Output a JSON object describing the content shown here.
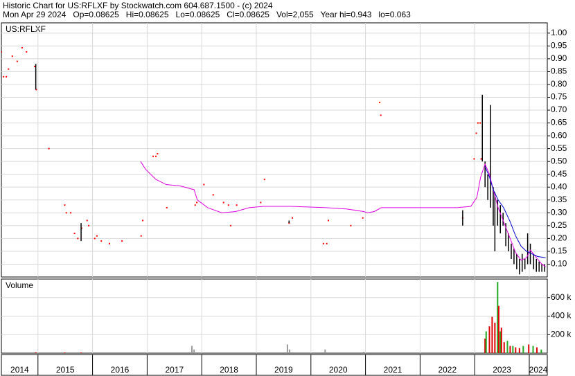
{
  "header": {
    "line1": "Historic Chart for US:RFLXF by Stockwatch.com 604.687.1500 - (c) 2024",
    "line2": "Mon Apr 29 2024   Op=0.08625   Hi=0.08625   Lo=0.08625   Cl=0.08625   Vol=2,055   Year hi=0.943   lo=0.063"
  },
  "chart_data": [
    {
      "type": "stock",
      "title": "US:RFLXF",
      "xlim": [
        2014.33,
        2024.33
      ],
      "ylim": [
        0.05,
        1.04
      ],
      "grid": true,
      "yticks": [
        {
          "value": 0.1,
          "label": "0.10"
        },
        {
          "value": 0.15,
          "label": "0.15"
        },
        {
          "value": 0.2,
          "label": "0.20"
        },
        {
          "value": 0.25,
          "label": "0.25"
        },
        {
          "value": 0.3,
          "label": "0.30"
        },
        {
          "value": 0.35,
          "label": "0.35"
        },
        {
          "value": 0.4,
          "label": "0.40"
        },
        {
          "value": 0.45,
          "label": "0.45"
        },
        {
          "value": 0.5,
          "label": "0.50"
        },
        {
          "value": 0.55,
          "label": "0.55"
        },
        {
          "value": 0.6,
          "label": "0.60"
        },
        {
          "value": 0.65,
          "label": "0.65"
        },
        {
          "value": 0.7,
          "label": "0.70"
        },
        {
          "value": 0.75,
          "label": "0.75"
        },
        {
          "value": 0.8,
          "label": "0.80"
        },
        {
          "value": 0.85,
          "label": "0.85"
        },
        {
          "value": 0.9,
          "label": "0.90"
        },
        {
          "value": 0.95,
          "label": "0.95"
        },
        {
          "value": 1.0,
          "label": "1.00"
        }
      ],
      "series": [
        {
          "type": "scatter",
          "color": "#ff0000",
          "x": [
            2014.33,
            2014.37,
            2014.42,
            2014.46,
            2014.53,
            2014.62,
            2014.71,
            2014.79,
            2014.94,
            2014.97,
            2015.2,
            2015.49,
            2015.52,
            2015.6,
            2015.67,
            2015.73,
            2015.8,
            2015.9,
            2015.93,
            2016.04,
            2016.08,
            2016.16,
            2016.31,
            2016.54,
            2016.89,
            2016.92,
            2017.11,
            2017.16,
            2017.19,
            2017.36,
            2017.88,
            2017.91,
            2018.04,
            2018.21,
            2018.4,
            2018.49,
            2018.53,
            2018.64,
            2019.08,
            2019.15,
            2019.6,
            2019.66,
            2020.23,
            2020.29,
            2020.32,
            2020.73,
            2020.95,
            2021.26,
            2021.28,
            2022.78,
            2022.99,
            2023.03,
            2023.06,
            2023.1,
            2023.12
          ],
          "values": [
            0.927,
            0.83,
            0.83,
            0.86,
            0.91,
            0.89,
            0.943,
            0.927,
            0.87,
            0.78,
            0.55,
            0.33,
            0.3,
            0.3,
            0.22,
            0.2,
            0.24,
            0.27,
            0.25,
            0.2,
            0.21,
            0.19,
            0.18,
            0.19,
            0.21,
            0.27,
            0.52,
            0.52,
            0.53,
            0.32,
            0.33,
            0.34,
            0.41,
            0.37,
            0.34,
            0.33,
            0.25,
            0.33,
            0.34,
            0.43,
            0.26,
            0.28,
            0.18,
            0.18,
            0.27,
            0.25,
            0.28,
            0.73,
            0.68,
            0.28,
            0.51,
            0.61,
            0.65,
            0.65,
            0.51
          ]
        },
        {
          "type": "range",
          "color": "#000000",
          "x": [
            2014.96,
            2015.79,
            2019.6,
            2022.78,
            2023.14,
            2023.19,
            2023.24,
            2023.29,
            2023.34,
            2023.37,
            2023.42,
            2023.47,
            2023.52,
            2023.57,
            2023.62,
            2023.67,
            2023.72,
            2023.77,
            2023.82,
            2023.87,
            2023.92,
            2023.97,
            2024.02,
            2024.08,
            2024.13,
            2024.18,
            2024.23,
            2024.28
          ],
          "low": [
            0.78,
            0.19,
            0.26,
            0.25,
            0.5,
            0.4,
            0.35,
            0.32,
            0.25,
            0.15,
            0.25,
            0.22,
            0.25,
            0.17,
            0.15,
            0.12,
            0.1,
            0.08,
            0.06,
            0.07,
            0.08,
            0.1,
            0.1,
            0.08,
            0.07,
            0.07,
            0.07,
            0.07
          ],
          "high": [
            0.88,
            0.26,
            0.27,
            0.31,
            0.76,
            0.5,
            0.45,
            0.72,
            0.4,
            0.38,
            0.35,
            0.33,
            0.3,
            0.26,
            0.22,
            0.18,
            0.16,
            0.14,
            0.12,
            0.14,
            0.12,
            0.22,
            0.18,
            0.14,
            0.12,
            0.11,
            0.1,
            0.1
          ]
        },
        {
          "type": "line",
          "color": "#e000e0",
          "x": [
            2016.88,
            2016.97,
            2017.16,
            2017.35,
            2017.6,
            2017.86,
            2017.92,
            2018.11,
            2018.37,
            2018.62,
            2018.87,
            2019.13,
            2019.64,
            2020.27,
            2020.65,
            2020.97,
            2021.03,
            2021.16,
            2021.29,
            2021.92,
            2022.68,
            2022.93,
            2023.04,
            2023.11,
            2023.19,
            2023.27,
            2023.34,
            2023.43,
            2023.53,
            2023.65,
            2023.75,
            2023.85,
            2023.95,
            2024.02,
            2024.13,
            2024.23,
            2024.3
          ],
          "values": [
            0.5,
            0.47,
            0.43,
            0.41,
            0.405,
            0.39,
            0.35,
            0.32,
            0.3,
            0.305,
            0.32,
            0.325,
            0.325,
            0.32,
            0.315,
            0.305,
            0.3,
            0.305,
            0.32,
            0.32,
            0.32,
            0.325,
            0.36,
            0.44,
            0.49,
            0.45,
            0.39,
            0.32,
            0.265,
            0.2,
            0.145,
            0.115,
            0.125,
            0.155,
            0.125,
            0.1,
            0.09
          ]
        },
        {
          "type": "line",
          "color": "#0000cc",
          "x": [
            2023.19,
            2023.27,
            2023.34,
            2023.43,
            2023.53,
            2023.65,
            2023.75,
            2023.85,
            2023.95,
            2024.05,
            2024.15,
            2024.3
          ],
          "values": [
            0.48,
            0.44,
            0.39,
            0.35,
            0.32,
            0.265,
            0.21,
            0.17,
            0.15,
            0.14,
            0.13,
            0.125
          ]
        }
      ]
    },
    {
      "type": "bar",
      "title": "Volume",
      "xlim": [
        2014.33,
        2024.33
      ],
      "ylim": [
        0,
        800000
      ],
      "grid": true,
      "yticks": [
        {
          "value": 200000,
          "label": "200 k"
        },
        {
          "value": 400000,
          "label": "400 k"
        },
        {
          "value": 600000,
          "label": "600 k"
        }
      ],
      "xticks": [
        {
          "value": 2014,
          "label": "2014"
        },
        {
          "value": 2015,
          "label": "2015"
        },
        {
          "value": 2016,
          "label": "2016"
        },
        {
          "value": 2017,
          "label": "2017"
        },
        {
          "value": 2018,
          "label": "2018"
        },
        {
          "value": 2019,
          "label": "2019"
        },
        {
          "value": 2020,
          "label": "2020"
        },
        {
          "value": 2021,
          "label": "2021"
        },
        {
          "value": 2022,
          "label": "2022"
        },
        {
          "value": 2023,
          "label": "2023"
        },
        {
          "value": 2024,
          "label": "2024"
        }
      ],
      "x": [
        2014.96,
        2015.49,
        2015.79,
        2017.82,
        2017.86,
        2019.57,
        2019.61,
        2020.26,
        2020.97,
        2023.19,
        2023.21,
        2023.27,
        2023.32,
        2023.37,
        2023.42,
        2023.44,
        2023.47,
        2023.49,
        2023.54,
        2023.6,
        2023.65,
        2023.7,
        2023.75,
        2023.82,
        2023.89,
        2023.99,
        2024.07,
        2024.14,
        2024.22
      ],
      "values": [
        10000,
        8000,
        8000,
        78000,
        40000,
        94000,
        40000,
        40000,
        15000,
        157000,
        235000,
        290000,
        392000,
        329000,
        769000,
        510000,
        235000,
        275000,
        118000,
        133000,
        78000,
        78000,
        63000,
        55000,
        78000,
        94000,
        78000,
        63000,
        39000
      ],
      "colors": [
        "#dd0000",
        "#dd0000",
        "#dd0000",
        "#999999",
        "#999999",
        "#999999",
        "#999999",
        "#999999",
        "#999999",
        "#dd0000",
        "#22aa22",
        "#dd0000",
        "#dd0000",
        "#dd0000",
        "#22aa22",
        "#dd0000",
        "#22aa22",
        "#dd0000",
        "#dd0000",
        "#22aa22",
        "#dd0000",
        "#22aa22",
        "#dd0000",
        "#dd0000",
        "#22aa22",
        "#dd0000",
        "#22aa22",
        "#dd0000",
        "#22aa22"
      ]
    }
  ]
}
